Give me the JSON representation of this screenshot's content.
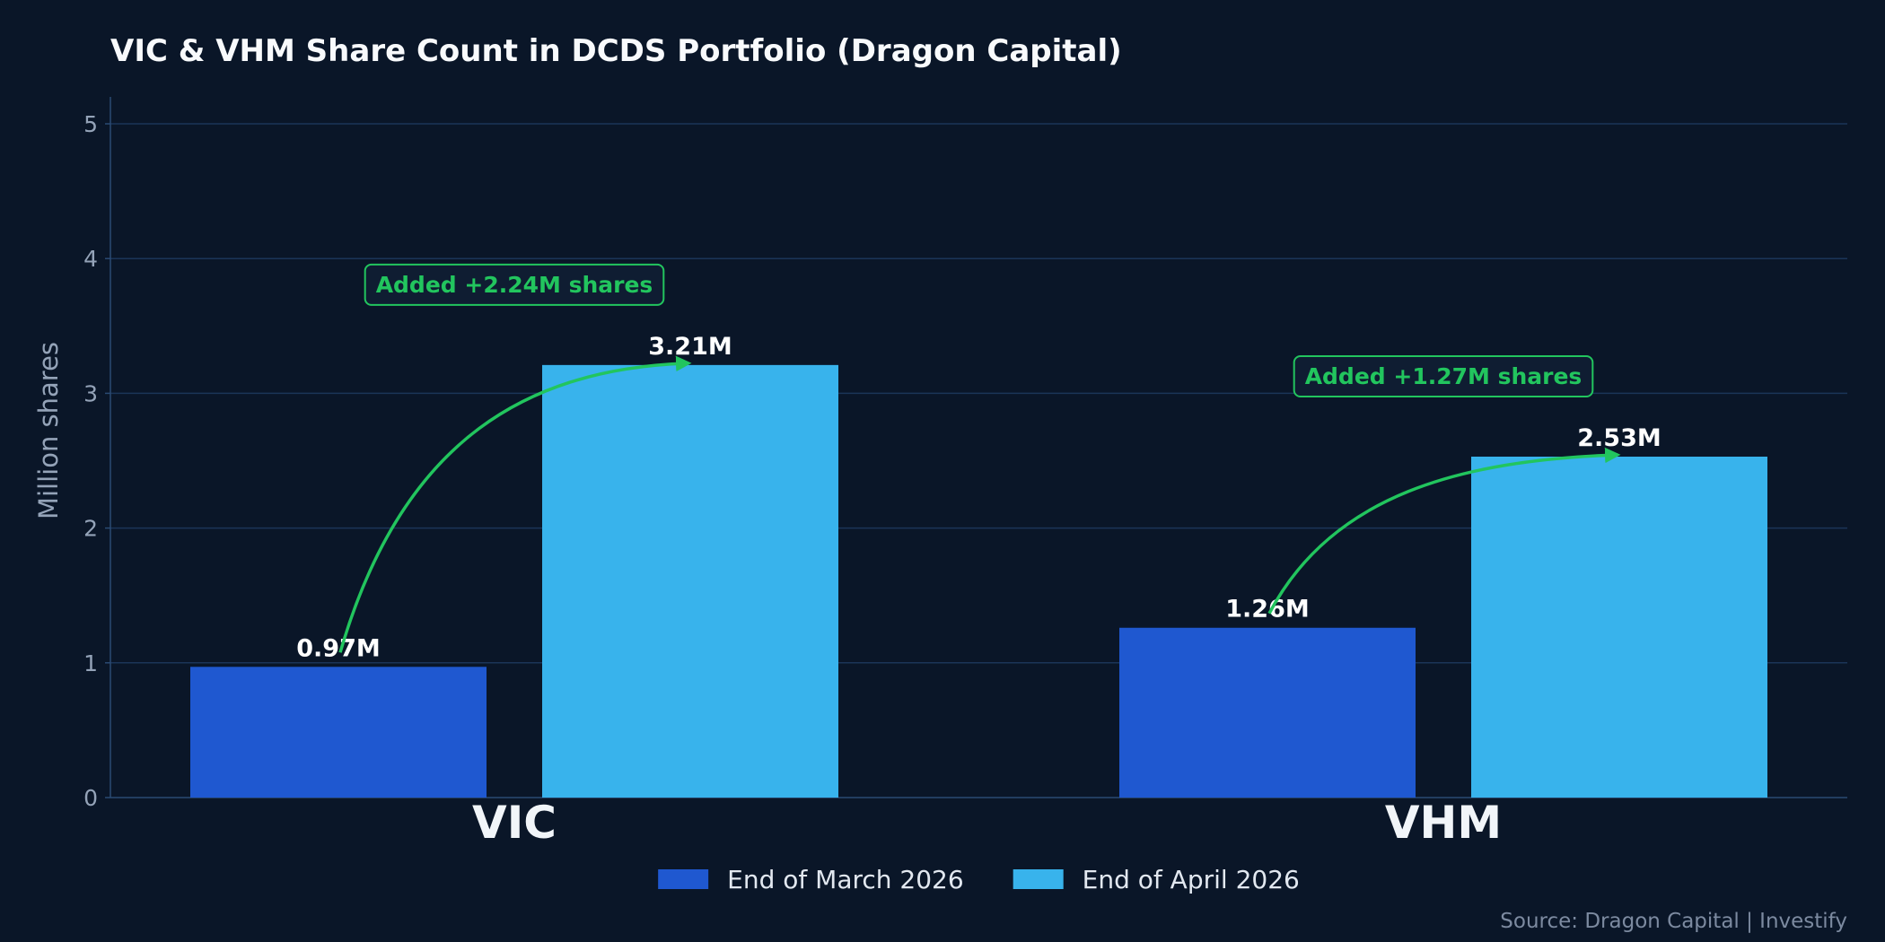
{
  "chart_data": {
    "type": "bar",
    "title": "VIC & VHM Share Count in DCDS Portfolio (Dragon Capital)",
    "ylabel": "Million shares",
    "xlabel": "",
    "ylim": [
      0,
      5.2
    ],
    "yticks": [
      0,
      1,
      2,
      3,
      4,
      5
    ],
    "grid": true,
    "categories": [
      "VIC",
      "VHM"
    ],
    "series": [
      {
        "name": "End of March 2026",
        "color": "#1f58d0",
        "values": [
          0.97,
          1.26
        ],
        "labels": [
          "0.97M",
          "1.26M"
        ]
      },
      {
        "name": "End of April 2026",
        "color": "#38b3ec",
        "values": [
          3.21,
          2.53
        ],
        "labels": [
          "3.21M",
          "2.53M"
        ]
      }
    ],
    "annotations": [
      {
        "category": "VIC",
        "text": "Added +2.24M shares"
      },
      {
        "category": "VHM",
        "text": "Added +1.27M shares"
      }
    ],
    "legend_position": "bottom-center",
    "source": "Source: Dragon Capital | Investify"
  },
  "colors": {
    "background": "#0a1628",
    "grid": "#1b3558",
    "axis": "#2a4a73",
    "annotation": "#22c55e"
  }
}
